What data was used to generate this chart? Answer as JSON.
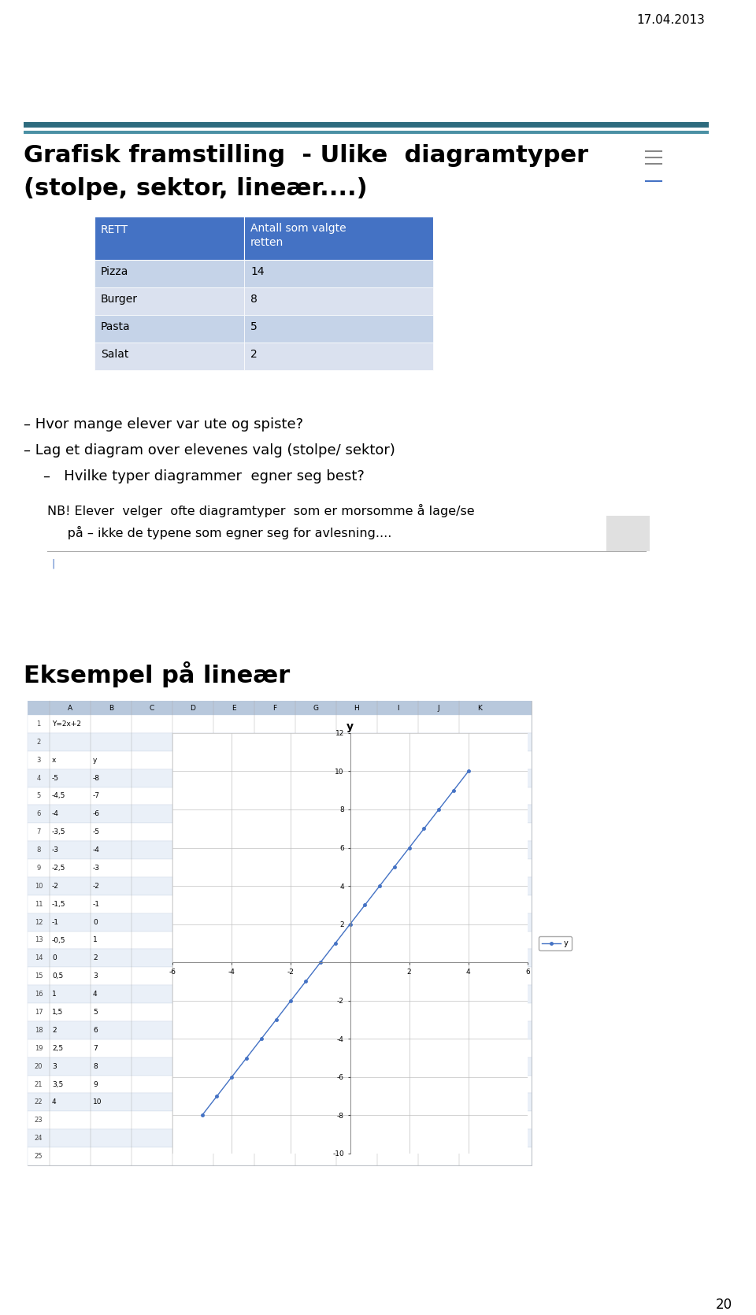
{
  "date": "17.04.2013",
  "title_line1": "Grafisk framstilling  - Ulike  diagramtyper",
  "title_line2": "(stolpe, sektor, lineær....)",
  "header_color": "#4472C4",
  "table_header_col1": "RETT",
  "table_header_col2": "Antall som valgte\nretten",
  "table_rows": [
    [
      "Pizza",
      "14"
    ],
    [
      "Burger",
      "8"
    ],
    [
      "Pasta",
      "5"
    ],
    [
      "Salat",
      "2"
    ]
  ],
  "table_row_color_odd": "#C5D3E8",
  "table_row_color_even": "#DAE1EF",
  "bullet1": "– Hvor mange elever var ute og spiste?",
  "bullet2": "– Lag et diagram over elevenes valg (stolpe/ sektor)",
  "bullet3": "–   Hvilke typer diagrammer  egner seg best?",
  "nb_line1": "NB! Elever  velger  ofte diagramtyper  som er morsomme å lage/se",
  "nb_line2": "     på – ikke de typene som egner seg for avlesning....",
  "section2_title": "Eksempel på lineær",
  "formula": "Y=2x+2",
  "x_values": [
    -5,
    -4.5,
    -4,
    -3.5,
    -3,
    -2.5,
    -2,
    -1.5,
    -1,
    -0.5,
    0,
    0.5,
    1,
    1.5,
    2,
    2.5,
    3,
    3.5,
    4
  ],
  "y_values": [
    -8,
    -7,
    -6,
    -5,
    -4,
    -3,
    -2,
    -1,
    0,
    1,
    2,
    3,
    4,
    5,
    6,
    7,
    8,
    9,
    10
  ],
  "chart_title": "y",
  "line_color": "#4472C4",
  "page_number": "20",
  "background_color": "#FFFFFF",
  "teal_bar_dark": "#2E6B7E",
  "teal_bar_light": "#4A90A4",
  "sheet_bg": "#D6E0F0",
  "sheet_header_bg": "#B8C8DC",
  "col_labels": [
    "",
    "A",
    "B",
    "C",
    "D",
    "E",
    "F",
    "G",
    "H",
    "I",
    "J",
    "K"
  ],
  "rows_data": [
    [
      "1",
      "Y=2x+2",
      "",
      "",
      "",
      "",
      "",
      "",
      "",
      "",
      "",
      ""
    ],
    [
      "2",
      "",
      "",
      "",
      "",
      "",
      "",
      "",
      "",
      "",
      "",
      ""
    ],
    [
      "3",
      "x",
      "y",
      "",
      "",
      "",
      "",
      "",
      "",
      "",
      "",
      ""
    ],
    [
      "4",
      "-5",
      "-8",
      "",
      "",
      "",
      "",
      "",
      "",
      "",
      "",
      ""
    ],
    [
      "5",
      "-4,5",
      "-7",
      "",
      "",
      "",
      "",
      "",
      "",
      "",
      "",
      ""
    ],
    [
      "6",
      "-4",
      "-6",
      "",
      "",
      "",
      "",
      "",
      "",
      "",
      "",
      ""
    ],
    [
      "7",
      "-3,5",
      "-5",
      "",
      "",
      "",
      "",
      "",
      "",
      "",
      "",
      ""
    ],
    [
      "8",
      "-3",
      "-4",
      "",
      "",
      "",
      "",
      "",
      "",
      "",
      "",
      ""
    ],
    [
      "9",
      "-2,5",
      "-3",
      "",
      "",
      "",
      "",
      "",
      "",
      "",
      "",
      ""
    ],
    [
      "10",
      "-2",
      "-2",
      "",
      "",
      "",
      "",
      "",
      "",
      "",
      "",
      ""
    ],
    [
      "11",
      "-1,5",
      "-1",
      "",
      "",
      "",
      "",
      "",
      "",
      "",
      "",
      ""
    ],
    [
      "12",
      "-1",
      "0",
      "",
      "",
      "",
      "",
      "",
      "",
      "",
      "",
      ""
    ],
    [
      "13",
      "-0,5",
      "1",
      "",
      "",
      "",
      "",
      "",
      "",
      "",
      "",
      ""
    ],
    [
      "14",
      "0",
      "2",
      "",
      "",
      "",
      "",
      "",
      "",
      "",
      "",
      ""
    ],
    [
      "15",
      "0,5",
      "3",
      "",
      "",
      "",
      "",
      "",
      "",
      "",
      "",
      ""
    ],
    [
      "16",
      "1",
      "4",
      "",
      "",
      "",
      "",
      "",
      "",
      "",
      "",
      ""
    ],
    [
      "17",
      "1,5",
      "5",
      "",
      "",
      "",
      "",
      "",
      "",
      "",
      "",
      ""
    ],
    [
      "18",
      "2",
      "6",
      "",
      "",
      "",
      "",
      "",
      "",
      "",
      "",
      ""
    ],
    [
      "19",
      "2,5",
      "7",
      "",
      "",
      "",
      "",
      "",
      "",
      "",
      "",
      ""
    ],
    [
      "20",
      "3",
      "8",
      "",
      "",
      "",
      "",
      "",
      "",
      "",
      "",
      ""
    ],
    [
      "21",
      "3,5",
      "9",
      "",
      "",
      "",
      "",
      "",
      "",
      "",
      "",
      ""
    ],
    [
      "22",
      "4",
      "10",
      "",
      "",
      "",
      "",
      "",
      "",
      "",
      "",
      ""
    ],
    [
      "23",
      "",
      "",
      "",
      "",
      "",
      "",
      "",
      "",
      "",
      "",
      ""
    ],
    [
      "24",
      "",
      "",
      "",
      "",
      "",
      "",
      "",
      "",
      "",
      "",
      ""
    ],
    [
      "25",
      "",
      "",
      "",
      "",
      "",
      "",
      "",
      "",
      "",
      "",
      ""
    ]
  ]
}
